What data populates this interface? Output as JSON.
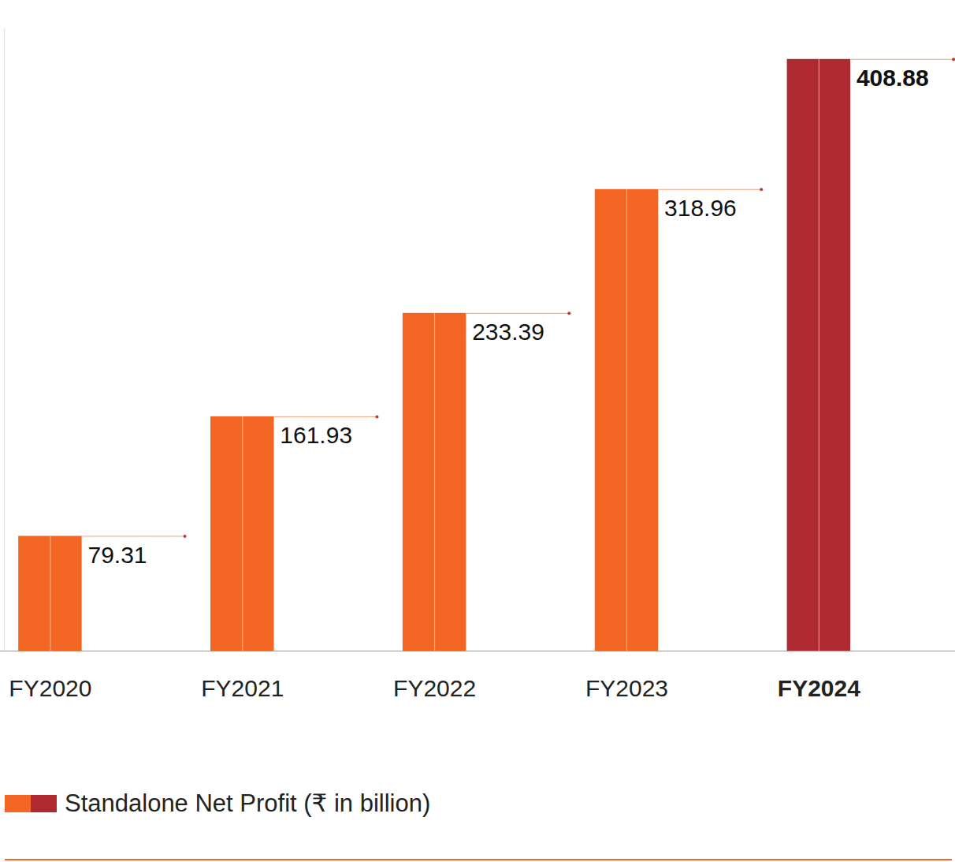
{
  "chart_data": {
    "type": "bar",
    "categories": [
      "FY2020",
      "FY2021",
      "FY2022",
      "FY2023",
      "FY2024"
    ],
    "series": [
      {
        "name": "Standalone Net Profit (₹ in billion)",
        "values": [
          79.31,
          161.93,
          233.39,
          318.96,
          408.88
        ],
        "colors": [
          "#f26522",
          "#f26522",
          "#f26522",
          "#f26522",
          "#ae2a30"
        ]
      }
    ],
    "ylim": [
      0,
      430
    ],
    "yticks": [],
    "grid": false,
    "data_labels": true,
    "tick_labels": "x",
    "legend": "bottom-left"
  }
}
